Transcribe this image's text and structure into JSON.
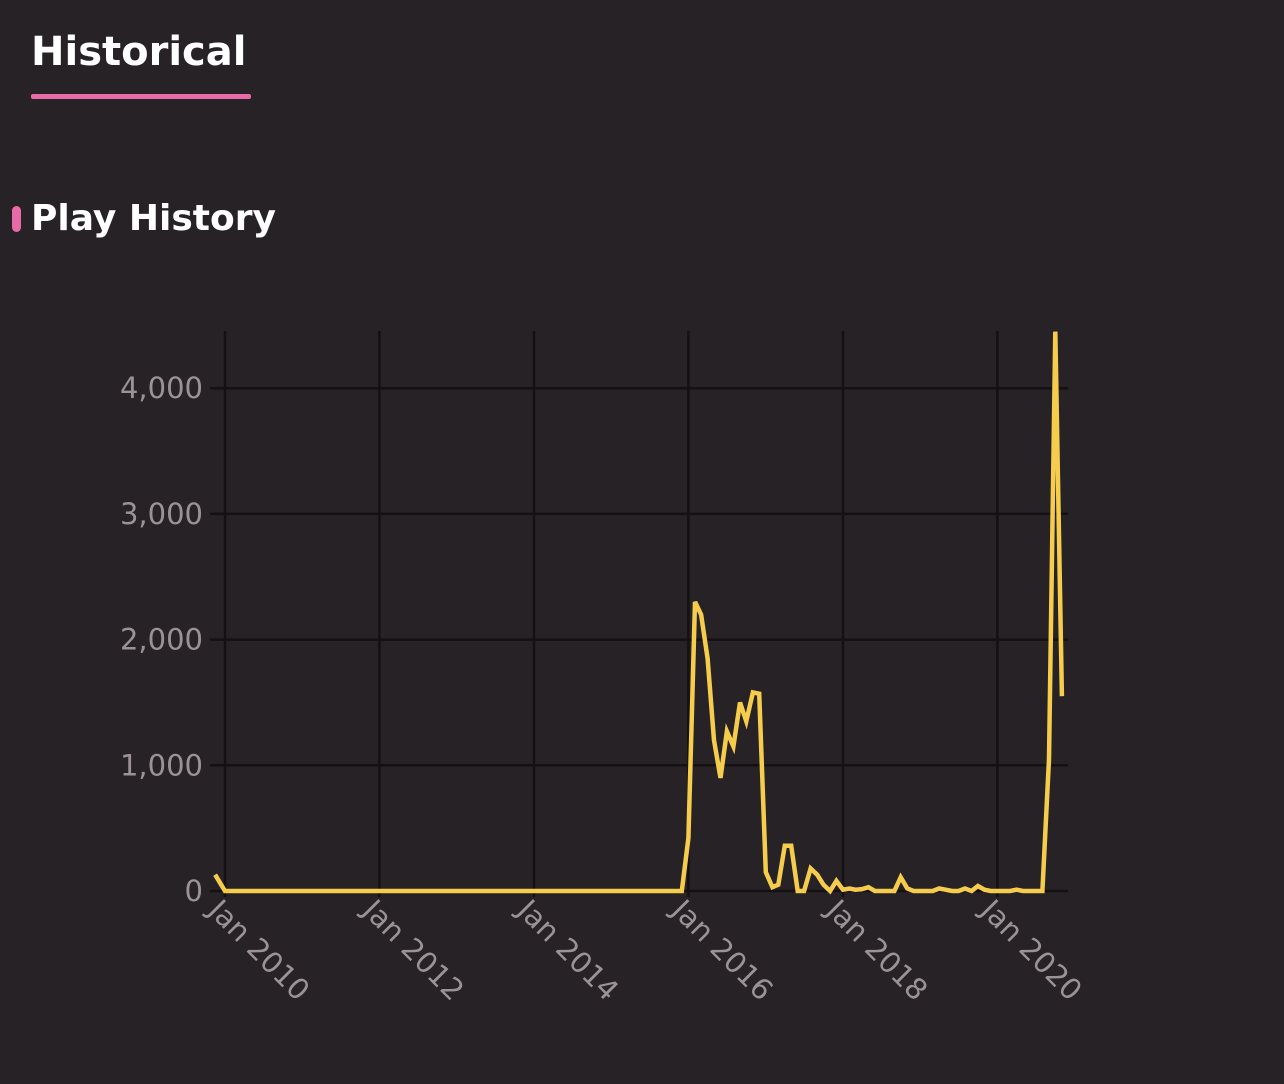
{
  "tab": {
    "label": "Historical"
  },
  "section": {
    "title": "Play History"
  },
  "colors": {
    "accent": "#e86aa6",
    "line": "#f5cc4c",
    "grid": "#141113",
    "background": "#272226",
    "tick_text": "#9b9297"
  },
  "chart_data": {
    "type": "line",
    "x_axis_type": "date",
    "xlim": [
      "2009-11-15",
      "2020-12-01"
    ],
    "ylim": [
      0,
      4450
    ],
    "grid": true,
    "y_ticks": [
      0,
      1000,
      2000,
      3000,
      4000
    ],
    "y_tick_labels": [
      "0",
      "1,000",
      "2,000",
      "3,000",
      "4,000"
    ],
    "x_ticks": [
      "2010-01-01",
      "2012-01-01",
      "2014-01-01",
      "2016-01-01",
      "2018-01-01",
      "2020-01-01"
    ],
    "x_tick_labels": [
      "Jan 2010",
      "Jan 2012",
      "Jan 2014",
      "Jan 2016",
      "Jan 2018",
      "Jan 2020"
    ],
    "series": [
      {
        "points": [
          [
            "2009-11-15",
            130
          ],
          [
            "2010-01-01",
            0
          ],
          [
            "2015-12-01",
            0
          ],
          [
            "2016-01-01",
            420
          ],
          [
            "2016-02-01",
            2300
          ],
          [
            "2016-03-01",
            2200
          ],
          [
            "2016-04-01",
            1850
          ],
          [
            "2016-05-01",
            1200
          ],
          [
            "2016-06-01",
            900
          ],
          [
            "2016-07-01",
            1270
          ],
          [
            "2016-08-01",
            1150
          ],
          [
            "2016-09-01",
            1500
          ],
          [
            "2016-10-01",
            1350
          ],
          [
            "2016-11-01",
            1580
          ],
          [
            "2016-12-01",
            1570
          ],
          [
            "2017-01-01",
            150
          ],
          [
            "2017-02-01",
            30
          ],
          [
            "2017-03-01",
            50
          ],
          [
            "2017-04-01",
            360
          ],
          [
            "2017-05-01",
            360
          ],
          [
            "2017-06-01",
            0
          ],
          [
            "2017-07-01",
            0
          ],
          [
            "2017-08-01",
            180
          ],
          [
            "2017-09-01",
            130
          ],
          [
            "2017-10-01",
            50
          ],
          [
            "2017-11-01",
            0
          ],
          [
            "2017-12-01",
            80
          ],
          [
            "2018-01-01",
            10
          ],
          [
            "2018-02-01",
            20
          ],
          [
            "2018-03-01",
            10
          ],
          [
            "2018-04-01",
            15
          ],
          [
            "2018-05-01",
            30
          ],
          [
            "2018-06-01",
            0
          ],
          [
            "2018-07-01",
            0
          ],
          [
            "2018-08-01",
            0
          ],
          [
            "2018-09-01",
            0
          ],
          [
            "2018-10-01",
            110
          ],
          [
            "2018-11-01",
            20
          ],
          [
            "2018-12-01",
            0
          ],
          [
            "2019-01-01",
            0
          ],
          [
            "2019-02-01",
            0
          ],
          [
            "2019-03-01",
            0
          ],
          [
            "2019-04-01",
            20
          ],
          [
            "2019-05-01",
            10
          ],
          [
            "2019-06-01",
            0
          ],
          [
            "2019-07-01",
            0
          ],
          [
            "2019-08-01",
            20
          ],
          [
            "2019-09-01",
            0
          ],
          [
            "2019-10-01",
            40
          ],
          [
            "2019-11-01",
            10
          ],
          [
            "2019-12-01",
            0
          ],
          [
            "2020-01-01",
            0
          ],
          [
            "2020-02-01",
            0
          ],
          [
            "2020-03-01",
            0
          ],
          [
            "2020-04-01",
            10
          ],
          [
            "2020-05-01",
            0
          ],
          [
            "2020-06-01",
            0
          ],
          [
            "2020-07-01",
            0
          ],
          [
            "2020-08-01",
            0
          ],
          [
            "2020-09-01",
            1050
          ],
          [
            "2020-10-01",
            4450
          ],
          [
            "2020-11-01",
            1550
          ]
        ]
      }
    ]
  }
}
